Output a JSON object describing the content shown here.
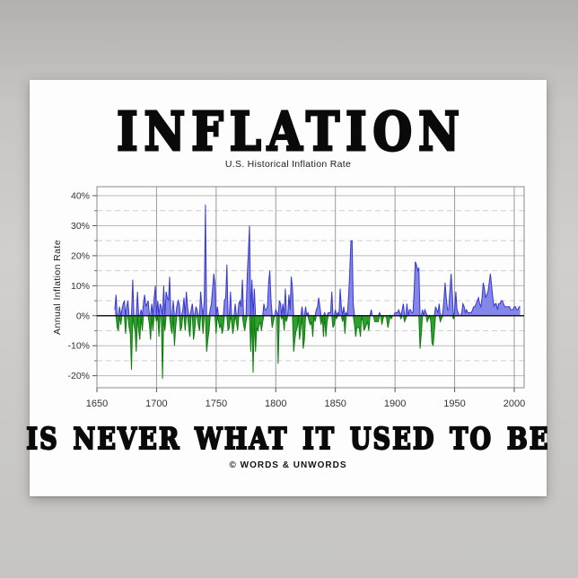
{
  "poster": {
    "title": "INFLATION",
    "subtitle": "U.S. Historical Inflation Rate",
    "slogan": "IS NEVER WHAT IT USED TO BE",
    "credit": "© WORDS & UNWORDS"
  },
  "colors": {
    "backdrop_gray_top": "#b2b1af",
    "backdrop_gray_bottom": "#c6c5c3",
    "poster_white": "#fdfdfd",
    "text_black": "#0a0a0a",
    "positive_fill": "#8487e8",
    "positive_line": "#3838cf",
    "negative_fill": "#2fa02f",
    "negative_line": "#0d7c0d",
    "zero_line": "#1a1a1a",
    "grid_major": "#b9b9b9",
    "grid_minor_dashed": "#cfcfcf",
    "grid_vertical": "#9a9a9a",
    "frame": "#8a8a8a",
    "tick_text": "#333333"
  },
  "chart_data": {
    "type": "area",
    "title": "U.S. Historical Inflation Rate",
    "ylabel": "Annual Inflation Rate",
    "xlabel": "",
    "legend": "none",
    "grid": "major-solid, minor-dashed",
    "xlim": [
      1650,
      2008.3
    ],
    "ylim": [
      -24,
      43
    ],
    "x_ticks": [
      1650,
      1700,
      1750,
      1800,
      1850,
      1900,
      1950,
      2000
    ],
    "y_ticks": [
      40,
      30,
      20,
      10,
      0,
      -10,
      -20
    ],
    "y_minor_ticks": [
      35,
      25,
      15,
      5,
      -5,
      -15
    ],
    "y_tick_suffix": "%",
    "start_year": 1665,
    "end_year": 2005,
    "values": [
      2,
      7,
      -4,
      -5,
      3,
      -3,
      2,
      4,
      5,
      -6,
      3,
      5,
      -4,
      -6,
      -18,
      12,
      -3,
      -5,
      -12,
      8,
      -5,
      -8,
      2,
      -5,
      4,
      7,
      3,
      4,
      5,
      -3,
      -8,
      4,
      -5,
      6,
      10,
      -2,
      5,
      -7,
      4,
      3,
      -21,
      10,
      -5,
      8,
      6,
      5,
      13,
      -4,
      -6,
      5,
      -10,
      -4,
      3,
      5,
      4,
      -5,
      -4,
      2,
      6,
      -5,
      8,
      3,
      -4,
      -7,
      2,
      4,
      -8,
      -5,
      3,
      2,
      -3,
      -5,
      8,
      3,
      -6,
      5,
      37,
      -12,
      -8,
      -5,
      2,
      4,
      9,
      14,
      11,
      -6,
      3,
      -2,
      -4,
      -3,
      -6,
      -4,
      5,
      6,
      17,
      -5,
      -4,
      8,
      -2,
      -6,
      -3,
      4,
      -2,
      -5,
      4,
      5,
      3,
      12,
      -3,
      -5,
      -2,
      13,
      21,
      30,
      -12,
      12,
      -19,
      9,
      -12,
      -4,
      -5,
      -3,
      -2,
      -5,
      -2,
      4,
      2,
      2,
      3,
      11,
      15,
      5,
      -4,
      -2,
      0,
      2,
      1,
      -16,
      5,
      4,
      -1,
      4,
      -5,
      9,
      -2,
      0,
      7,
      2,
      13,
      9,
      -12,
      -8,
      -5,
      -4,
      0,
      -8,
      -4,
      3,
      -11,
      -8,
      3,
      0,
      1,
      -2,
      -3,
      -2,
      -7,
      0,
      -2,
      2,
      3,
      6,
      3,
      -3,
      0,
      -7,
      1,
      -7,
      -2,
      1,
      1,
      1,
      8,
      -4,
      -3,
      2,
      -1,
      1,
      0,
      9,
      3,
      -2,
      3,
      -6,
      1,
      0,
      6,
      14,
      25,
      25,
      4,
      -3,
      -7,
      -4,
      -4,
      -4,
      -7,
      0,
      -2,
      -5,
      -4,
      -3,
      -2,
      -5,
      0,
      2,
      0,
      0,
      -2,
      -2,
      -2,
      -2,
      1,
      0,
      -3,
      -1,
      0,
      0,
      -1,
      -4,
      -2,
      0,
      -1,
      0,
      0,
      1,
      1,
      1,
      2,
      1,
      -1,
      2,
      4,
      -2,
      -1,
      4,
      0,
      2,
      2,
      1,
      1,
      8,
      18,
      17,
      15,
      16,
      -11,
      -6,
      2,
      0,
      2,
      1,
      -2,
      -1,
      0,
      -2,
      -9,
      -10,
      -5,
      3,
      2,
      1,
      4,
      -2,
      -1,
      1,
      5,
      11,
      6,
      2,
      2,
      8,
      14,
      8,
      -1,
      1,
      8,
      2,
      1,
      0,
      0,
      1,
      4,
      3,
      1,
      2,
      1,
      1,
      1,
      1,
      2,
      3,
      3,
      4,
      5,
      6,
      4,
      3,
      6,
      11,
      9,
      6,
      7,
      8,
      11,
      14,
      10,
      6,
      3,
      4,
      4,
      2,
      4,
      4,
      5,
      5,
      4,
      3,
      3,
      3,
      3,
      3,
      2,
      2,
      2,
      3,
      3,
      2,
      2,
      3,
      3
    ]
  }
}
